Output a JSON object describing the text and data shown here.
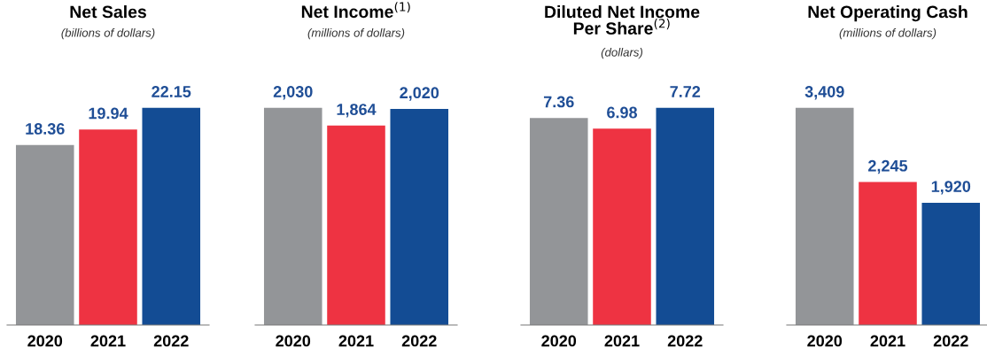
{
  "chart_data": [
    {
      "type": "bar",
      "title": "Net Sales",
      "subtitle": "(billions of dollars)",
      "categories": [
        "2020",
        "2021",
        "2022"
      ],
      "values": [
        18.36,
        19.94,
        22.15
      ],
      "colors": [
        "#939598",
        "#ee3342",
        "#134c94"
      ],
      "value_labels": [
        "18.36",
        "19.94",
        "22.15"
      ],
      "tick_labels": "x"
    },
    {
      "type": "bar",
      "title": "Net Income$^{(1)}$",
      "subtitle": "(millions of dollars)",
      "categories": [
        "2020",
        "2021",
        "2022"
      ],
      "values": [
        2030,
        1864,
        2020
      ],
      "colors": [
        "#939598",
        "#ee3342",
        "#134c94"
      ],
      "value_labels": [
        "2,030",
        "1,864",
        "2,020"
      ],
      "tick_labels": "x"
    },
    {
      "type": "bar",
      "title": "Diluted Net Income\nPer Share$^{(2)}$",
      "subtitle": "(dollars)",
      "categories": [
        "2020",
        "2021",
        "2022"
      ],
      "values": [
        7.36,
        6.98,
        7.72
      ],
      "colors": [
        "#939598",
        "#ee3342",
        "#134c94"
      ],
      "value_labels": [
        "7.36",
        "6.98",
        "7.72"
      ],
      "tick_labels": "x"
    },
    {
      "type": "bar",
      "title": "Net Operating Cash",
      "subtitle": "(millions of dollars)",
      "categories": [
        "2020",
        "2021",
        "2022"
      ],
      "values": [
        3409,
        2245,
        1920
      ],
      "colors": [
        "#939598",
        "#ee3342",
        "#134c94"
      ],
      "value_labels": [
        "3,409",
        "2,245",
        "1,920"
      ],
      "tick_labels": "x"
    }
  ]
}
